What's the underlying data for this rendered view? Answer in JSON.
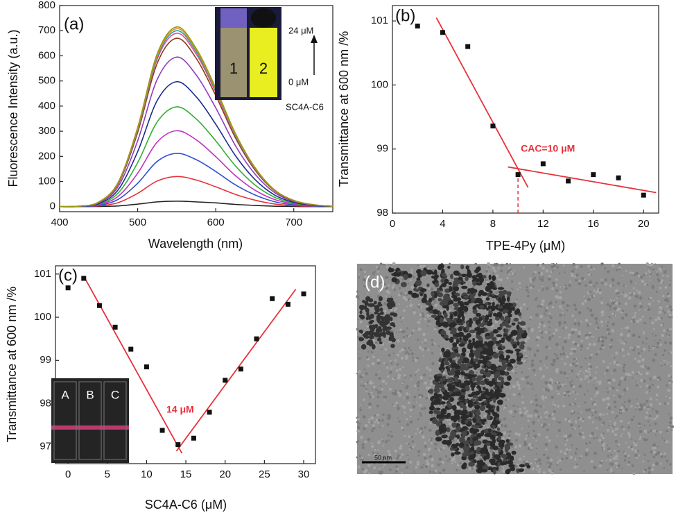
{
  "chart_data": [
    {
      "type": "line",
      "panel_label": "(a)",
      "x_label": "Wavelength (nm)",
      "y_label": "Fluorescence Intensity (a.u.)",
      "x": [
        400,
        425,
        450,
        475,
        500,
        525,
        550,
        575,
        600,
        625,
        650,
        675,
        700,
        725,
        750
      ],
      "xlim": [
        400,
        750
      ],
      "xticks": [
        400,
        500,
        600,
        700
      ],
      "ylim": [
        -20,
        800
      ],
      "yticks": [
        0,
        100,
        200,
        300,
        400,
        500,
        600,
        700,
        800
      ],
      "series": [
        {
          "color": "#222222",
          "values": [
            0,
            0,
            1,
            3,
            10,
            19,
            22,
            19,
            15,
            9,
            5,
            2,
            1,
            0,
            0
          ]
        },
        {
          "color": "#e8303a",
          "values": [
            0,
            0,
            3,
            16,
            53,
            102,
            120,
            106,
            79,
            49,
            26,
            11,
            4,
            1,
            0
          ]
        },
        {
          "color": "#3050d0",
          "values": [
            0,
            1,
            5,
            29,
            93,
            180,
            212,
            187,
            140,
            87,
            47,
            20,
            7,
            2,
            1
          ]
        },
        {
          "color": "#c030c0",
          "values": [
            0,
            1,
            8,
            41,
            133,
            257,
            302,
            266,
            199,
            124,
            66,
            29,
            11,
            3,
            1
          ]
        },
        {
          "color": "#30b030",
          "values": [
            0,
            1,
            10,
            54,
            175,
            337,
            397,
            349,
            262,
            163,
            87,
            38,
            14,
            4,
            1
          ]
        },
        {
          "color": "#1c2a8c",
          "values": [
            0,
            1,
            12,
            67,
            219,
            422,
            497,
            437,
            328,
            204,
            109,
            47,
            17,
            5,
            1
          ]
        },
        {
          "color": "#8a3cc0",
          "values": [
            0,
            2,
            15,
            80,
            262,
            506,
            595,
            524,
            393,
            244,
            131,
            57,
            21,
            7,
            2
          ]
        },
        {
          "color": "#8b3a1a",
          "values": [
            0,
            2,
            17,
            90,
            295,
            570,
            670,
            590,
            442,
            275,
            147,
            64,
            23,
            7,
            2
          ]
        },
        {
          "color": "#e05090",
          "values": [
            0,
            2,
            17,
            93,
            304,
            587,
            690,
            607,
            455,
            283,
            152,
            66,
            24,
            8,
            2
          ]
        },
        {
          "color": "#20a0b0",
          "values": [
            0,
            2,
            18,
            95,
            308,
            595,
            700,
            616,
            462,
            287,
            154,
            67,
            25,
            8,
            2
          ]
        },
        {
          "color": "#e09020",
          "values": [
            0,
            2,
            18,
            96,
            312,
            602,
            708,
            623,
            467,
            290,
            156,
            67,
            25,
            8,
            2
          ]
        },
        {
          "color": "#9a9a10",
          "values": [
            0,
            2,
            18,
            97,
            315,
            608,
            715,
            629,
            472,
            293,
            157,
            68,
            25,
            8,
            2
          ]
        }
      ],
      "inset": {
        "vial_labels": [
          "1",
          "2"
        ],
        "top_label": "24 μM",
        "bottom_label": "0 μM",
        "caption": "SC4A-C6"
      }
    },
    {
      "type": "scatter",
      "panel_label": "(b)",
      "x_label": "TPE-4Py (μM)",
      "y_label": "Transmittance at 600 nm /%",
      "x": [
        2,
        4,
        6,
        8,
        10,
        12,
        14,
        16,
        18,
        20
      ],
      "values": [
        100.92,
        100.82,
        100.6,
        99.36,
        98.6,
        98.77,
        98.5,
        98.6,
        98.55,
        98.28
      ],
      "xlim": [
        0,
        21.2
      ],
      "xticks": [
        0,
        4,
        8,
        12,
        16,
        20
      ],
      "ylim": [
        98,
        101.24
      ],
      "yticks": [
        98,
        99,
        100,
        101
      ],
      "point_color": "#111111",
      "fit_color": "#e8303a",
      "fits": [
        {
          "x": [
            3.5,
            10.8
          ],
          "values": [
            101.05,
            98.4
          ]
        },
        {
          "x": [
            9.2,
            21
          ],
          "values": [
            98.72,
            98.32
          ]
        }
      ],
      "marker_line": {
        "x": 10,
        "y": 98.67
      },
      "annotation": "CAC=10 μM"
    },
    {
      "type": "scatter",
      "panel_label": "(c)",
      "x_label": "SC4A-C6 (μM)",
      "y_label": "Transmittance at 600 nm /%",
      "x": [
        0,
        2,
        4,
        6,
        8,
        10,
        12,
        14,
        16,
        18,
        20,
        22,
        24,
        26,
        28,
        30
      ],
      "values": [
        100.68,
        100.9,
        100.27,
        99.77,
        99.26,
        98.85,
        97.38,
        97.05,
        97.2,
        97.8,
        98.54,
        98.8,
        99.5,
        100.43,
        100.3,
        100.54
      ],
      "xlim": [
        -1.6,
        31.5
      ],
      "xticks": [
        0,
        5,
        10,
        15,
        20,
        25,
        30
      ],
      "ylim": [
        96.61,
        101.19
      ],
      "yticks": [
        97,
        98,
        99,
        100,
        101
      ],
      "point_color": "#111111",
      "fit_color": "#e8303a",
      "fits": [
        {
          "x": [
            2,
            14.5
          ],
          "values": [
            100.95,
            96.85
          ]
        },
        {
          "x": [
            13.8,
            29
          ],
          "values": [
            96.9,
            100.65
          ]
        }
      ],
      "annotation": "14 μM",
      "inset": {
        "vial_labels": [
          "A",
          "B",
          "C"
        ]
      }
    }
  ],
  "image_panel": {
    "panel_label": "(d)",
    "scale_bar": "50 nm"
  }
}
